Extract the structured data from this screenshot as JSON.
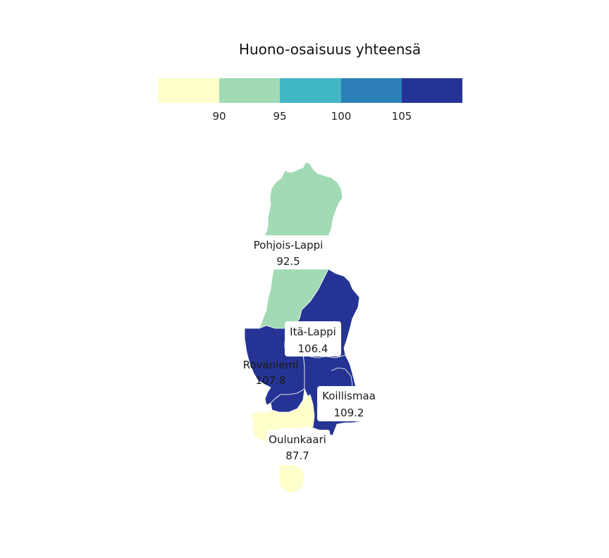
{
  "title": "Huono-osaisuus yhteensä",
  "legend": {
    "bins": [
      {
        "color": "#ffffcc"
      },
      {
        "color": "#a1dab4"
      },
      {
        "color": "#41b6c4"
      },
      {
        "color": "#2c7fb8"
      },
      {
        "color": "#253494"
      }
    ],
    "ticks": [
      "90",
      "95",
      "100",
      "105"
    ]
  },
  "regions": [
    {
      "id": "pohjois-lappi",
      "name": "Pohjois-Lappi",
      "value": "92.5",
      "color": "#a1dab4"
    },
    {
      "id": "ita-lappi",
      "name": "Itä-Lappi",
      "value": "106.4",
      "color": "#253494"
    },
    {
      "id": "rovaniemi",
      "name": "Rovaniemi",
      "value": "107.8",
      "color": "#253494"
    },
    {
      "id": "koillismaa",
      "name": "Koillismaa",
      "value": "109.2",
      "color": "#253494"
    },
    {
      "id": "oulunkaari",
      "name": "Oulunkaari",
      "value": "87.7",
      "color": "#ffffcc"
    }
  ]
}
